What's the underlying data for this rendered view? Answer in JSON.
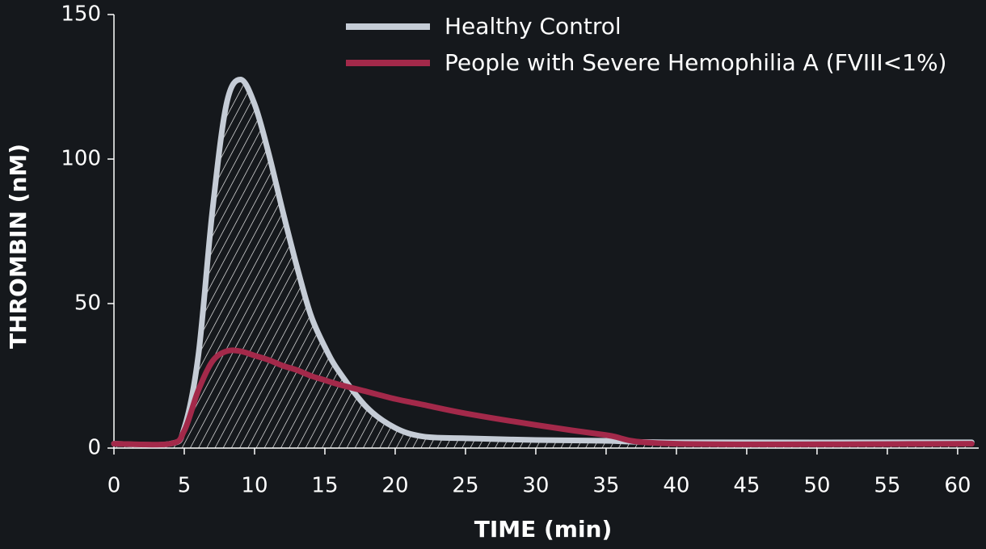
{
  "chart_data": {
    "type": "line",
    "xlabel": "TIME (min)",
    "ylabel": "THROMBIN (nM)",
    "x": [
      0,
      4,
      5,
      6,
      7,
      8,
      9,
      10,
      11,
      12,
      13,
      14,
      15,
      16,
      18,
      20,
      22,
      25,
      30,
      35,
      40,
      61
    ],
    "series": [
      {
        "name": "Healthy Control",
        "color": "#c5ccd6",
        "hatched": true,
        "values": [
          1.5,
          1.5,
          7,
          32,
          82,
          119,
          127.5,
          119,
          102,
          82,
          63,
          46,
          35,
          26.5,
          14,
          7,
          4,
          3.4,
          2.8,
          2.5,
          2,
          2
        ]
      },
      {
        "name": "People with Severe Hemophilia A (FVIII<1%)",
        "color": "#a3294a",
        "hatched": false,
        "values": [
          1.5,
          1.5,
          6,
          20,
          30,
          33.5,
          33.5,
          32,
          30.5,
          28.5,
          27,
          25,
          23.5,
          22,
          19.5,
          17,
          15,
          12,
          8,
          4.5,
          1.5,
          1.5
        ]
      }
    ],
    "xlim": [
      0,
      61.5
    ],
    "ylim": [
      0,
      150
    ],
    "xticks": [
      0,
      5,
      10,
      15,
      20,
      25,
      30,
      35,
      40,
      45,
      50,
      55,
      60
    ],
    "yticks": [
      0,
      50,
      100,
      150
    ],
    "legend": "upper right"
  }
}
